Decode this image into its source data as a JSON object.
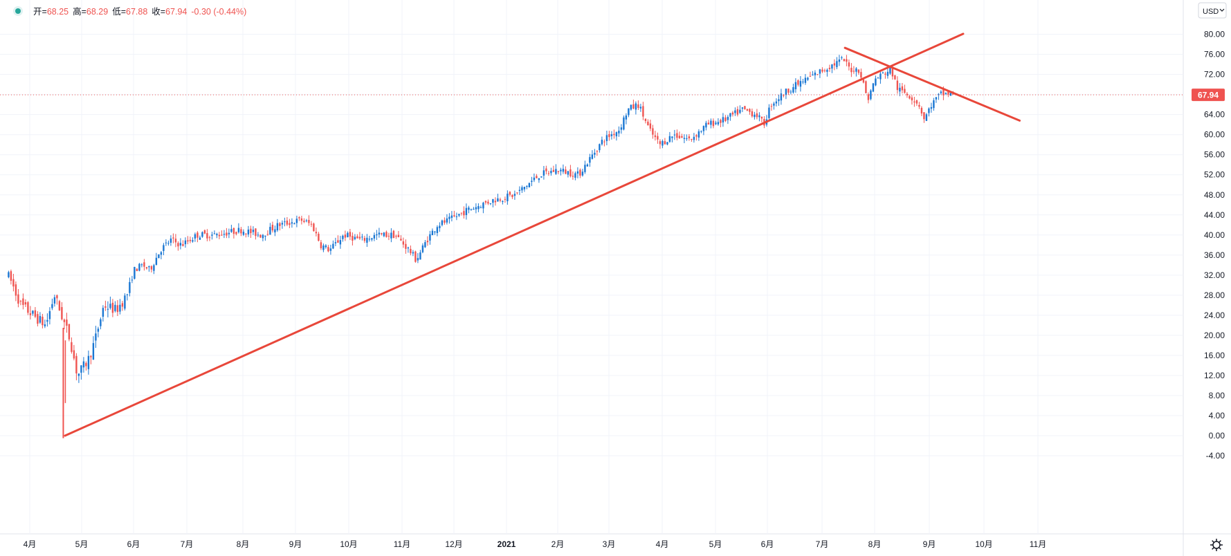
{
  "header": {
    "open_label": "开=",
    "open": "68.25",
    "high_label": "高=",
    "high": "68.29",
    "low_label": "低=",
    "low": "67.88",
    "close_label": "收=",
    "close": "67.94",
    "change": "-0.30 (-0.44%)"
  },
  "currency_button": "USD",
  "colors": {
    "up": "#1976d2",
    "down": "#ef5350",
    "trendline": "#e8473a",
    "last_price_bg": "#ef5350",
    "status_dot": "#26a69a"
  },
  "chart_data": {
    "type": "candlestick",
    "currency": "USD",
    "last_price": "67.94",
    "y_axis": {
      "min": -4,
      "max": 80,
      "ticks": [
        "80.00",
        "76.00",
        "72.00",
        "68.00",
        "64.00",
        "60.00",
        "56.00",
        "52.00",
        "48.00",
        "44.00",
        "40.00",
        "36.00",
        "32.00",
        "28.00",
        "24.00",
        "20.00",
        "16.00",
        "12.00",
        "8.00",
        "4.00",
        "0.00",
        "-4.00"
      ]
    },
    "x_axis": {
      "labels": [
        "4月",
        "5月",
        "6月",
        "7月",
        "8月",
        "9月",
        "10月",
        "11月",
        "12月",
        "2021",
        "2月",
        "3月",
        "4月",
        "5月",
        "6月",
        "7月",
        "8月",
        "9月",
        "10月",
        "11月"
      ],
      "bold": [
        "2021"
      ]
    },
    "grid": true,
    "price_path": [
      [
        "2020-03-20",
        32
      ],
      [
        "2020-03-27",
        26
      ],
      [
        "2020-04-03",
        24
      ],
      [
        "2020-04-10",
        22
      ],
      [
        "2020-04-15",
        28
      ],
      [
        "2020-04-20",
        23
      ],
      [
        "2020-04-24",
        19
      ],
      [
        "2020-04-28",
        12
      ],
      [
        "2020-05-04",
        15
      ],
      [
        "2020-05-08",
        19
      ],
      [
        "2020-05-13",
        26
      ],
      [
        "2020-05-20",
        25
      ],
      [
        "2020-05-26",
        28
      ],
      [
        "2020-05-30",
        33
      ],
      [
        "2020-06-04",
        34
      ],
      [
        "2020-06-08",
        33
      ],
      [
        "2020-06-14",
        37
      ],
      [
        "2020-06-20",
        39
      ],
      [
        "2020-06-26",
        38
      ],
      [
        "2020-07-05",
        40
      ],
      [
        "2020-07-15",
        40
      ],
      [
        "2020-07-30",
        41
      ],
      [
        "2020-08-10",
        40
      ],
      [
        "2020-08-20",
        42
      ],
      [
        "2020-09-02",
        43
      ],
      [
        "2020-09-08",
        42
      ],
      [
        "2020-09-13",
        38
      ],
      [
        "2020-09-18",
        37
      ],
      [
        "2020-09-26",
        40
      ],
      [
        "2020-10-06",
        39
      ],
      [
        "2020-10-15",
        40
      ],
      [
        "2020-10-25",
        40
      ],
      [
        "2020-11-02",
        37
      ],
      [
        "2020-11-06",
        35
      ],
      [
        "2020-11-12",
        39
      ],
      [
        "2020-11-18",
        42
      ],
      [
        "2020-11-25",
        43
      ],
      [
        "2020-12-05",
        45
      ],
      [
        "2020-12-20",
        47
      ],
      [
        "2021-01-01",
        48
      ],
      [
        "2021-01-08",
        50
      ],
      [
        "2021-01-15",
        52
      ],
      [
        "2021-01-25",
        53
      ],
      [
        "2021-02-06",
        52
      ],
      [
        "2021-02-12",
        55
      ],
      [
        "2021-02-20",
        59
      ],
      [
        "2021-03-01",
        61
      ],
      [
        "2021-03-06",
        65
      ],
      [
        "2021-03-12",
        66
      ],
      [
        "2021-03-18",
        61
      ],
      [
        "2021-03-24",
        58
      ],
      [
        "2021-04-01",
        60
      ],
      [
        "2021-04-10",
        59
      ],
      [
        "2021-04-20",
        62
      ],
      [
        "2021-04-30",
        63
      ],
      [
        "2021-05-10",
        65
      ],
      [
        "2021-05-18",
        64
      ],
      [
        "2021-05-22",
        62
      ],
      [
        "2021-05-26",
        66
      ],
      [
        "2021-06-05",
        69
      ],
      [
        "2021-06-15",
        71
      ],
      [
        "2021-06-25",
        73
      ],
      [
        "2021-07-06",
        75
      ],
      [
        "2021-07-10",
        73
      ],
      [
        "2021-07-15",
        73
      ],
      [
        "2021-07-20",
        67
      ],
      [
        "2021-07-24",
        71
      ],
      [
        "2021-07-28",
        72
      ],
      [
        "2021-08-02",
        73
      ],
      [
        "2021-08-06",
        69
      ],
      [
        "2021-08-12",
        68
      ],
      [
        "2021-08-18",
        66
      ],
      [
        "2021-08-21",
        63
      ],
      [
        "2021-08-25",
        66
      ],
      [
        "2021-08-30",
        68
      ],
      [
        "2021-09-03",
        68.2
      ],
      [
        "2021-09-07",
        67.94
      ]
    ],
    "trendlines": [
      {
        "from": [
          "2020-04-21",
          0.0
        ],
        "to": [
          "2021-09-12",
          80.1
        ]
      },
      {
        "from": [
          "2021-07-07",
          77.3
        ],
        "to": [
          "2021-10-14",
          62.8
        ]
      }
    ]
  }
}
